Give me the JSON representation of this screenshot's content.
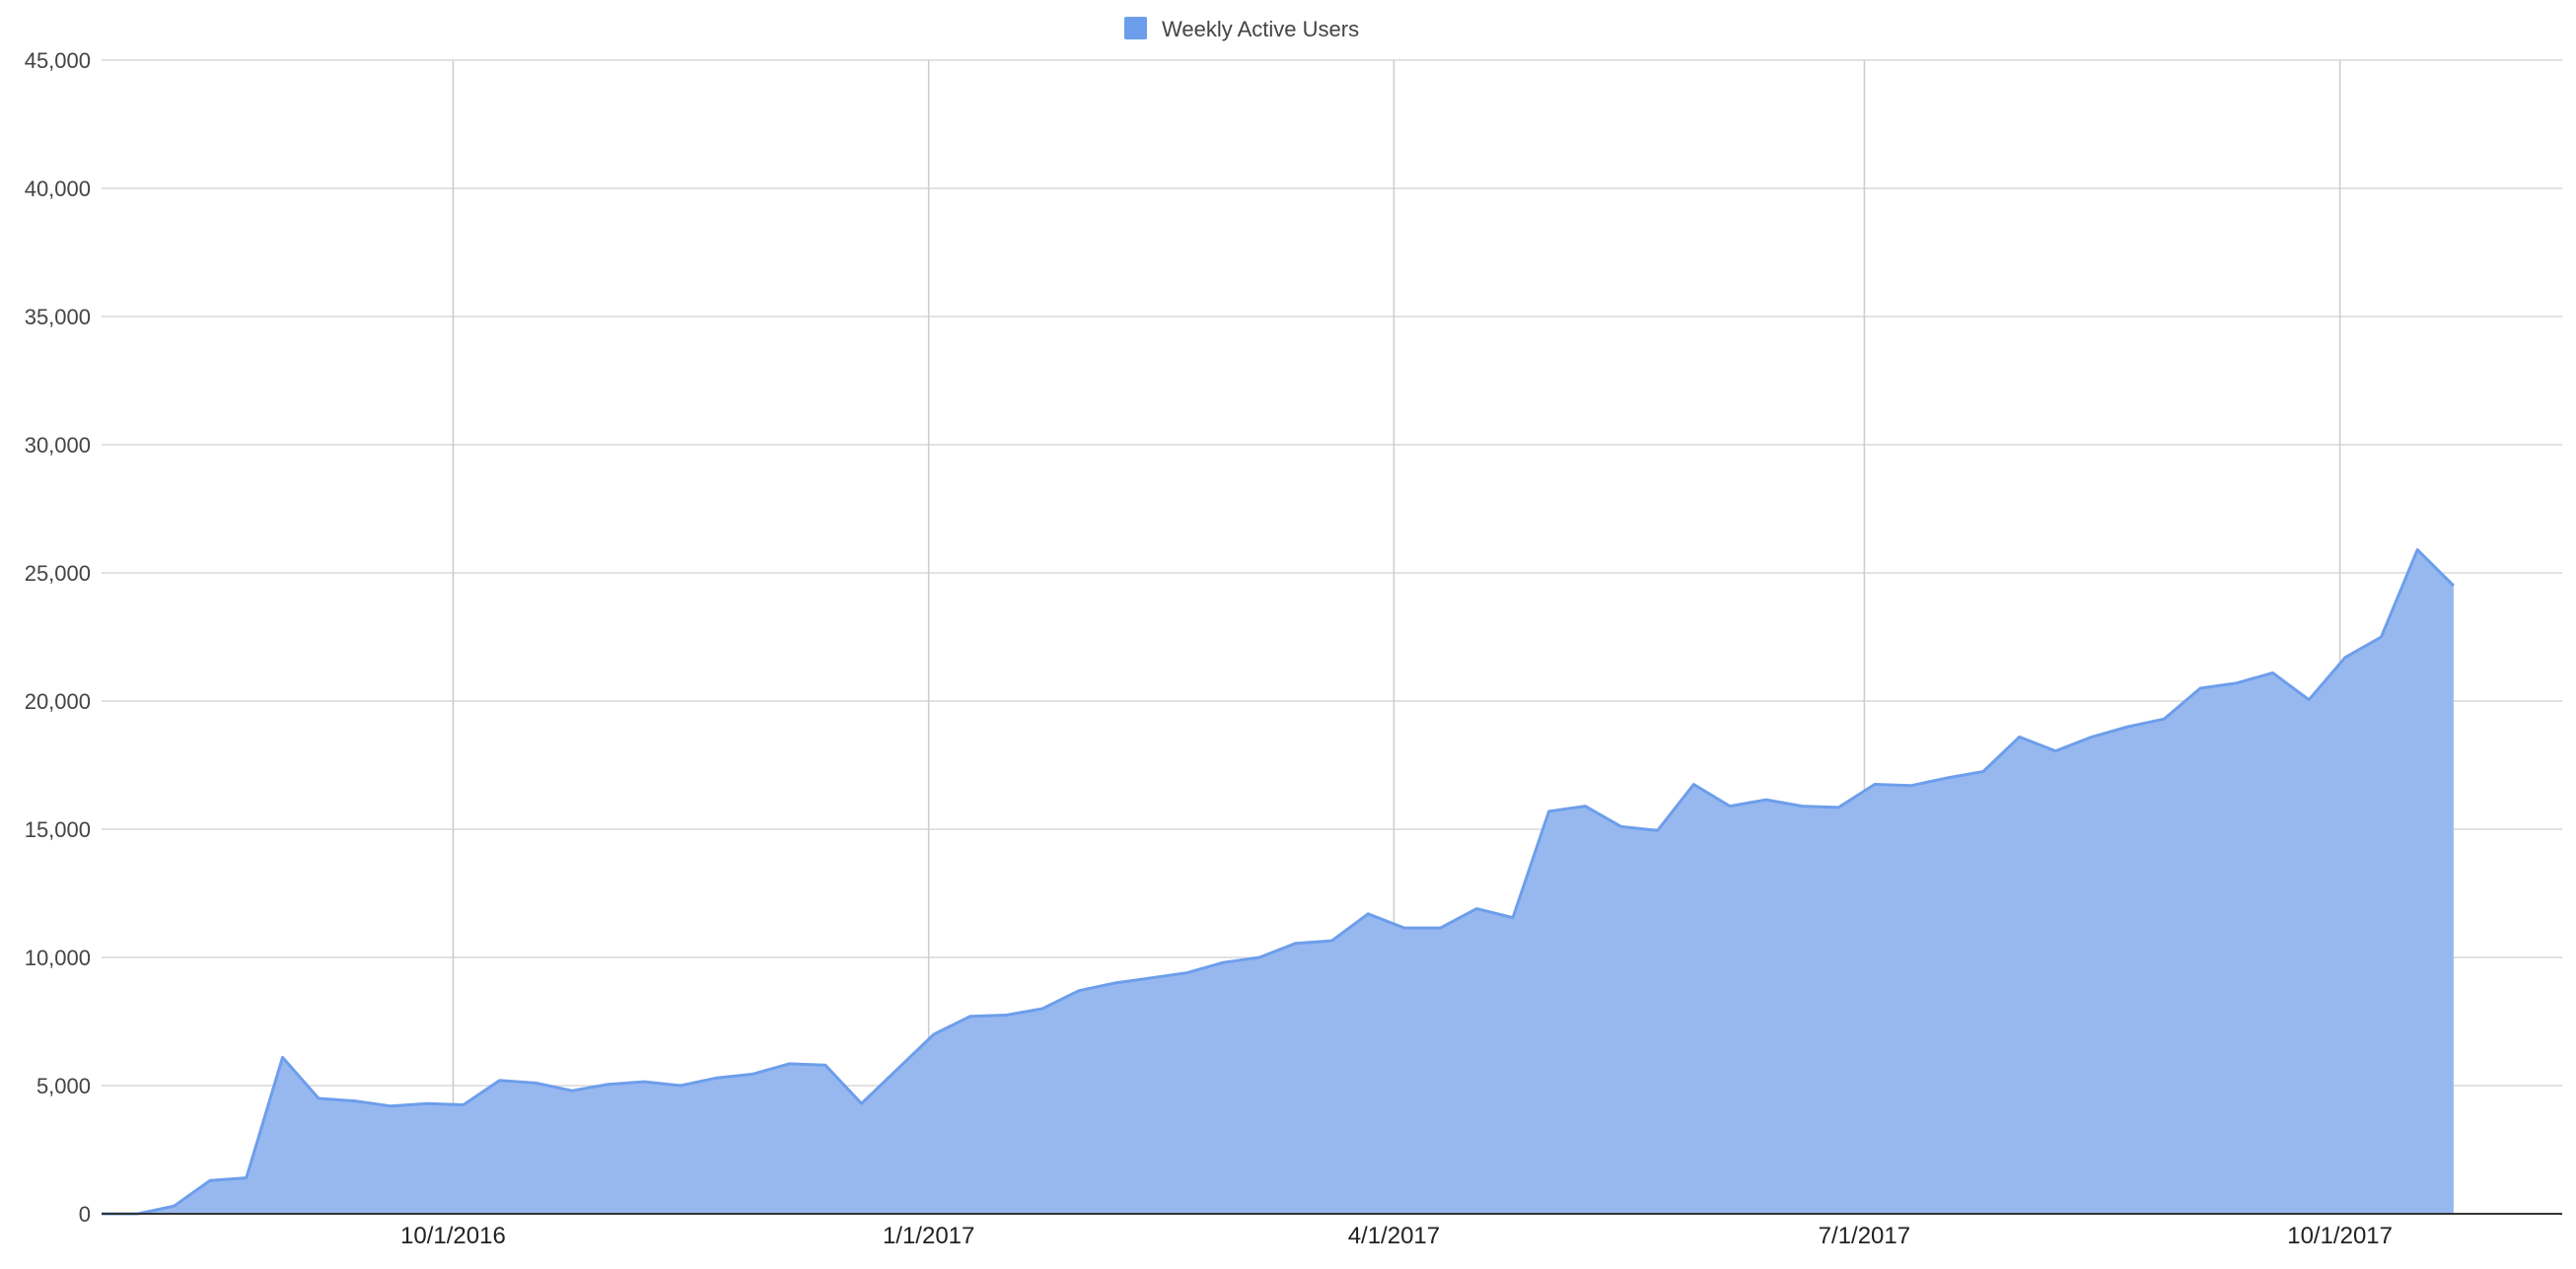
{
  "chart_data": {
    "type": "area",
    "title": "",
    "xlabel": "",
    "ylabel": "",
    "x_axis": {
      "type": "date",
      "range": [
        "2016-07-25",
        "2017-11-13"
      ],
      "ticks": [
        {
          "date": "2016-10-01",
          "label": "10/1/2016"
        },
        {
          "date": "2017-01-01",
          "label": "1/1/2017"
        },
        {
          "date": "2017-04-01",
          "label": "4/1/2017"
        },
        {
          "date": "2017-07-01",
          "label": "7/1/2017"
        },
        {
          "date": "2017-10-01",
          "label": "10/1/2017"
        }
      ]
    },
    "y_axis": {
      "range": [
        0,
        45000
      ],
      "ticks": [
        {
          "value": 0,
          "label": "0"
        },
        {
          "value": 5000,
          "label": "5,000"
        },
        {
          "value": 10000,
          "label": "10,000"
        },
        {
          "value": 15000,
          "label": "15,000"
        },
        {
          "value": 20000,
          "label": "20,000"
        },
        {
          "value": 25000,
          "label": "25,000"
        },
        {
          "value": 30000,
          "label": "30,000"
        },
        {
          "value": 35000,
          "label": "35,000"
        },
        {
          "value": 40000,
          "label": "40,000"
        },
        {
          "value": 45000,
          "label": "45,000"
        }
      ]
    },
    "grid": true,
    "legend": {
      "position": "top-center",
      "entries": [
        {
          "label": "Weekly Active Users",
          "color": "#6d9eeb"
        }
      ]
    },
    "series": [
      {
        "name": "Weekly Active Users",
        "color": "#6d9eeb",
        "fill_color": "#97b8ef",
        "line_color": "#6d9eeb",
        "x": [
          "2016-07-25",
          "2016-08-01",
          "2016-08-08",
          "2016-08-15",
          "2016-08-22",
          "2016-08-29",
          "2016-09-05",
          "2016-09-12",
          "2016-09-19",
          "2016-09-26",
          "2016-10-03",
          "2016-10-10",
          "2016-10-17",
          "2016-10-24",
          "2016-10-31",
          "2016-11-07",
          "2016-11-14",
          "2016-11-21",
          "2016-11-28",
          "2016-12-05",
          "2016-12-12",
          "2016-12-19",
          "2016-12-26",
          "2017-01-02",
          "2017-01-09",
          "2017-01-16",
          "2017-01-23",
          "2017-01-30",
          "2017-02-06",
          "2017-02-13",
          "2017-02-20",
          "2017-02-27",
          "2017-03-06",
          "2017-03-13",
          "2017-03-20",
          "2017-03-27",
          "2017-04-03",
          "2017-04-10",
          "2017-04-17",
          "2017-04-24",
          "2017-05-01",
          "2017-05-08",
          "2017-05-15",
          "2017-05-22",
          "2017-05-29",
          "2017-06-05",
          "2017-06-12",
          "2017-06-19",
          "2017-06-26",
          "2017-07-03",
          "2017-07-10",
          "2017-07-17",
          "2017-07-24",
          "2017-07-31",
          "2017-08-07",
          "2017-08-14",
          "2017-08-21",
          "2017-08-28",
          "2017-09-04",
          "2017-09-11",
          "2017-09-18",
          "2017-09-25",
          "2017-10-02",
          "2017-10-09",
          "2017-10-16",
          "2017-10-23",
          "2017-10-30",
          "2017-11-06",
          "2017-11-13"
        ],
        "values": [
          0,
          0,
          300,
          1300,
          1400,
          6100,
          4500,
          4400,
          4200,
          4300,
          4250,
          5200,
          5100,
          4800,
          5050,
          5150,
          5000,
          5300,
          5450,
          5850,
          5800,
          4300,
          5650,
          7000,
          7700,
          7750,
          8000,
          8700,
          9000,
          9200,
          9400,
          9800,
          10000,
          10550,
          10650,
          11700,
          11150,
          11150,
          11900,
          11550,
          15700,
          15900,
          15100,
          14950,
          16750,
          15900,
          16150,
          15900,
          15850,
          16750,
          16700,
          17000,
          17250,
          18600,
          18050,
          18600,
          19000,
          19300,
          20500,
          20700,
          21100,
          20050,
          21700,
          22500,
          25900,
          24500,
          null,
          null,
          null
        ]
      }
    ]
  }
}
